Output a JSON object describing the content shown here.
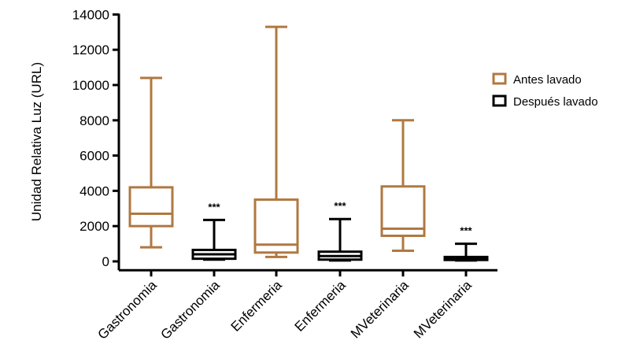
{
  "chart_data": {
    "type": "boxplot",
    "ylabel": "Unidad Relativa Luz (URL)",
    "xlabel": "",
    "ylim": [
      -500,
      14000
    ],
    "yticks": [
      0,
      2000,
      4000,
      6000,
      8000,
      10000,
      12000,
      14000
    ],
    "categories": [
      "Gastronomia",
      "Gastronomia",
      "Enfermeria",
      "Enfermeria",
      "MVeterinaria",
      "MVeterinaria"
    ],
    "series": [
      {
        "name": "Antes lavado",
        "color": "#b07840"
      },
      {
        "name": "Después lavado",
        "color": "#000000"
      }
    ],
    "boxes": [
      {
        "category": "Gastronomia",
        "series": "Antes lavado",
        "min": 800,
        "q1": 2000,
        "median": 2700,
        "q3": 4200,
        "max": 10400,
        "annotation": ""
      },
      {
        "category": "Gastronomia",
        "series": "Después lavado",
        "min": 100,
        "q1": 150,
        "median": 400,
        "q3": 650,
        "max": 2350,
        "annotation": "***"
      },
      {
        "category": "Enfermeria",
        "series": "Antes lavado",
        "min": 250,
        "q1": 500,
        "median": 950,
        "q3": 3500,
        "max": 13300,
        "annotation": ""
      },
      {
        "category": "Enfermeria",
        "series": "Después lavado",
        "min": 50,
        "q1": 100,
        "median": 300,
        "q3": 550,
        "max": 2400,
        "annotation": "***"
      },
      {
        "category": "MVeterinaria",
        "series": "Antes lavado",
        "min": 600,
        "q1": 1450,
        "median": 1850,
        "q3": 4250,
        "max": 8000,
        "annotation": ""
      },
      {
        "category": "MVeterinaria",
        "series": "Después lavado",
        "min": 50,
        "q1": 80,
        "median": 150,
        "q3": 250,
        "max": 1000,
        "annotation": "***"
      }
    ],
    "legend_position": "right",
    "grid": false
  }
}
